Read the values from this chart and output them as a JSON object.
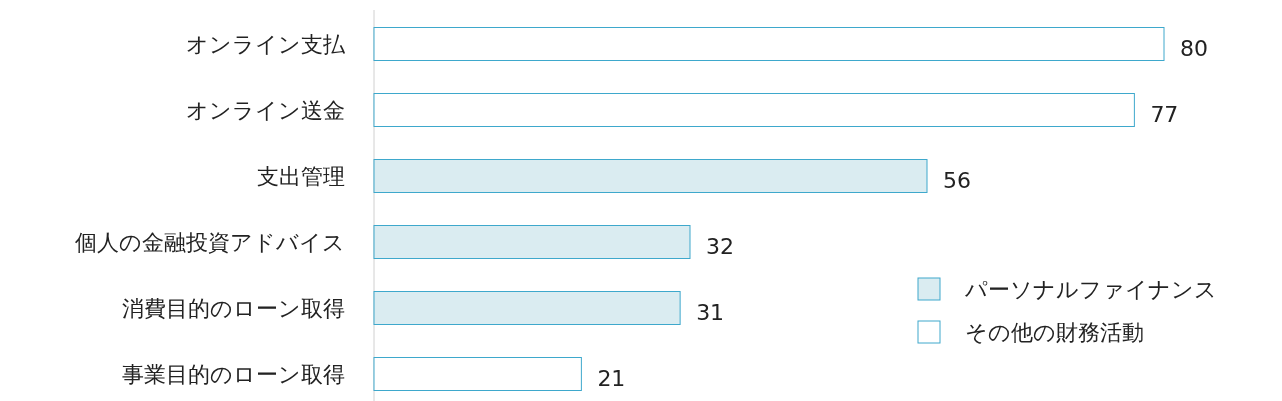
{
  "chart_data": {
    "type": "bar",
    "orientation": "horizontal",
    "categories": [
      "オンライン支払",
      "オンライン送金",
      "支出管理",
      "個人の金融投資アドバイス",
      "消費目的のローン取得",
      "事業目的のローン取得"
    ],
    "series": [
      {
        "name": "パーソナルファイナンス",
        "color": "#daecf1",
        "values": [
          null,
          null,
          56,
          32,
          31,
          null
        ]
      },
      {
        "name": "その他の財務活動",
        "color": "#ffffff",
        "values": [
          80,
          77,
          null,
          null,
          null,
          21
        ]
      }
    ],
    "data_labels": true,
    "legend": "bottom right"
  }
}
